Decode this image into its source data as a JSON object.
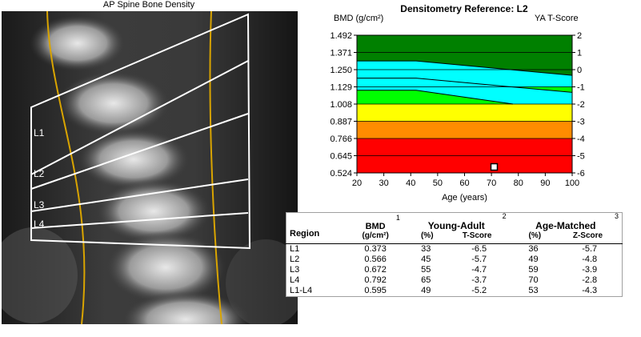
{
  "scan": {
    "title": "AP Spine Bone Density",
    "labels": [
      "L1",
      "L2",
      "L3",
      "L4"
    ]
  },
  "chart": {
    "title": "Densitometry Reference: L2",
    "ylabel_left": "BMD (g/cm²)",
    "ylabel_right": "YA T-Score",
    "xlabel": "Age (years)"
  },
  "chart_data": {
    "type": "area",
    "title": "Densitometry Reference: L2",
    "xlabel": "Age (years)",
    "ylabel": "BMD (g/cm²)",
    "y2label": "YA T-Score",
    "xlim": [
      20,
      100
    ],
    "ylim": [
      0.524,
      1.492
    ],
    "x_ticks": [
      20,
      30,
      40,
      50,
      60,
      70,
      80,
      90,
      100
    ],
    "y_ticks": [
      "0.524",
      "0.645",
      "0.766",
      "0.887",
      "1.008",
      "1.129",
      "1.250",
      "1.371",
      "1.492"
    ],
    "y2_ticks": [
      "-6",
      "-5",
      "-4",
      "-3",
      "-2",
      "-1",
      "0",
      "1",
      "2"
    ],
    "y2lim": [
      -6,
      2
    ],
    "bands": [
      {
        "color": "#008000",
        "t_lo": 1,
        "t_hi": 2
      },
      {
        "color": "#00ffff",
        "t_lo": -1,
        "t_hi": 1
      },
      {
        "color": "#00ff00",
        "t_lo": -2.5,
        "t_hi": -1
      },
      {
        "color": "#ffff00",
        "t_lo": -3,
        "t_hi": -2
      },
      {
        "color": "#ff8c00",
        "t_lo": -4,
        "t_hi": -3
      },
      {
        "color": "#ff0000",
        "t_lo": -6,
        "t_hi": -4
      }
    ],
    "reference_curves": [
      {
        "points": [
          [
            20,
            1.311
          ],
          [
            42,
            1.311
          ],
          [
            100,
            1.21
          ]
        ]
      },
      {
        "points": [
          [
            20,
            1.19
          ],
          [
            42,
            1.19
          ],
          [
            100,
            1.09
          ]
        ]
      },
      {
        "points": [
          [
            20,
            1.105
          ],
          [
            42,
            1.105
          ],
          [
            78,
            1.008
          ]
        ]
      }
    ],
    "grid_t_lines": [
      -5,
      -4,
      -3,
      -2,
      -1,
      0,
      1
    ],
    "patient_point": {
      "x": 71,
      "y": 0.566
    }
  },
  "table": {
    "headers": {
      "region": "Region",
      "bmd": "BMD",
      "bmd_unit": "(g/cm²)",
      "young_adult": "Young-Adult",
      "age_matched": "Age-Matched",
      "pct": "(%)",
      "tscore": "T-Score",
      "zscore": "Z-Score",
      "fn1": "1",
      "fn2": "2",
      "fn3": "3"
    },
    "rows": [
      {
        "region": "L1",
        "bmd": "0.373",
        "ya_pct": "33",
        "t": "-6.5",
        "am_pct": "36",
        "z": "-5.7"
      },
      {
        "region": "L2",
        "bmd": "0.566",
        "ya_pct": "45",
        "t": "-5.7",
        "am_pct": "49",
        "z": "-4.8"
      },
      {
        "region": "L3",
        "bmd": "0.672",
        "ya_pct": "55",
        "t": "-4.7",
        "am_pct": "59",
        "z": "-3.9"
      },
      {
        "region": "L4",
        "bmd": "0.792",
        "ya_pct": "65",
        "t": "-3.7",
        "am_pct": "70",
        "z": "-2.8"
      },
      {
        "region": "L1-L4",
        "bmd": "0.595",
        "ya_pct": "49",
        "t": "-5.2",
        "am_pct": "53",
        "z": "-4.3"
      }
    ]
  }
}
